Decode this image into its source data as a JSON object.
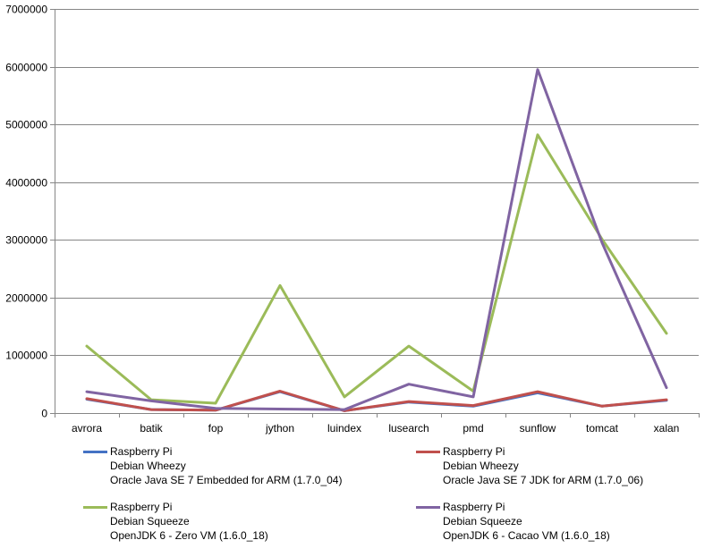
{
  "chart_data": {
    "type": "line",
    "categories": [
      "avrora",
      "batik",
      "fop",
      "jython",
      "luindex",
      "lusearch",
      "pmd",
      "sunflow",
      "tomcat",
      "xalan"
    ],
    "ylim": [
      0,
      7000000
    ],
    "y_ticks": [
      "0",
      "1000000",
      "2000000",
      "3000000",
      "4000000",
      "5000000",
      "6000000",
      "7000000"
    ],
    "y_tick_values": [
      0,
      1000000,
      2000000,
      3000000,
      4000000,
      5000000,
      6000000,
      7000000
    ],
    "grid": true,
    "legend_position": "bottom",
    "series": [
      {
        "legend_lines": [
          "Raspberry Pi",
          "Debian Wheezy",
          "Oracle Java SE 7 Embedded for ARM (1.7.0_04)"
        ],
        "color": "#4472C4",
        "values": [
          240000,
          60000,
          50000,
          370000,
          40000,
          190000,
          120000,
          350000,
          120000,
          220000
        ]
      },
      {
        "legend_lines": [
          "Raspberry Pi",
          "Debian Wheezy",
          "Oracle Java SE 7 JDK for ARM (1.7.0_06)"
        ],
        "color": "#C0504D",
        "values": [
          250000,
          60000,
          50000,
          380000,
          40000,
          200000,
          130000,
          370000,
          120000,
          230000
        ]
      },
      {
        "legend_lines": [
          "Raspberry Pi",
          "Debian Squeeze",
          "OpenJDK 6 - Zero VM (1.6.0_18)"
        ],
        "color": "#9BBB59",
        "values": [
          1160000,
          230000,
          170000,
          2210000,
          280000,
          1160000,
          380000,
          4820000,
          3010000,
          1380000
        ]
      },
      {
        "legend_lines": [
          "Raspberry Pi",
          "Debian Squeeze",
          "OpenJDK 6 - Cacao VM (1.6.0_18)"
        ],
        "color": "#8064A2",
        "values": [
          370000,
          210000,
          80000,
          70000,
          60000,
          500000,
          280000,
          5950000,
          2950000,
          440000
        ]
      }
    ]
  }
}
